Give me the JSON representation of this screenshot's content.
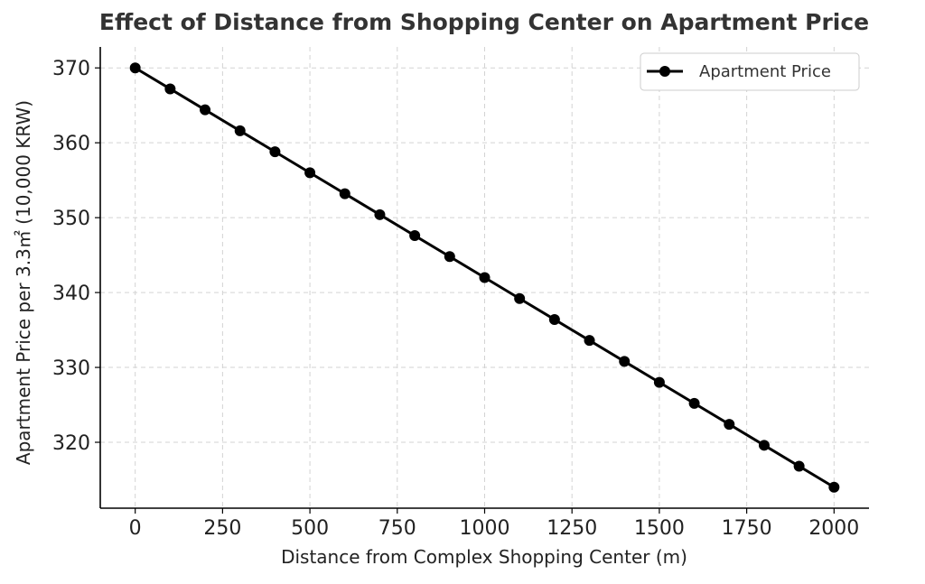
{
  "chart_data": {
    "type": "line",
    "title": "Effect of Distance from Shopping Center on Apartment Price",
    "xlabel": "Distance from Complex Shopping Center (m)",
    "ylabel": "Apartment Price per 3.3㎡ (10,000 KRW)",
    "x": [
      0,
      100,
      200,
      300,
      400,
      500,
      600,
      700,
      800,
      900,
      1000,
      1100,
      1200,
      1300,
      1400,
      1500,
      1600,
      1700,
      1800,
      1900,
      2000
    ],
    "series": [
      {
        "name": "Apartment Price",
        "values": [
          370.0,
          367.2,
          364.4,
          361.6,
          358.8,
          356.0,
          353.2,
          350.4,
          347.6,
          344.8,
          342.0,
          339.2,
          336.4,
          333.6,
          330.8,
          328.0,
          325.2,
          322.4,
          319.6,
          316.8,
          314.0
        ],
        "color": "#000000",
        "marker": "circle"
      }
    ],
    "xlim": [
      -100,
      2100
    ],
    "ylim": [
      311.2,
      372.8
    ],
    "xticks": [
      0,
      250,
      500,
      750,
      1000,
      1250,
      1500,
      1750,
      2000
    ],
    "yticks": [
      320,
      330,
      340,
      350,
      360,
      370
    ],
    "grid": true,
    "legend_position": "top-right"
  }
}
